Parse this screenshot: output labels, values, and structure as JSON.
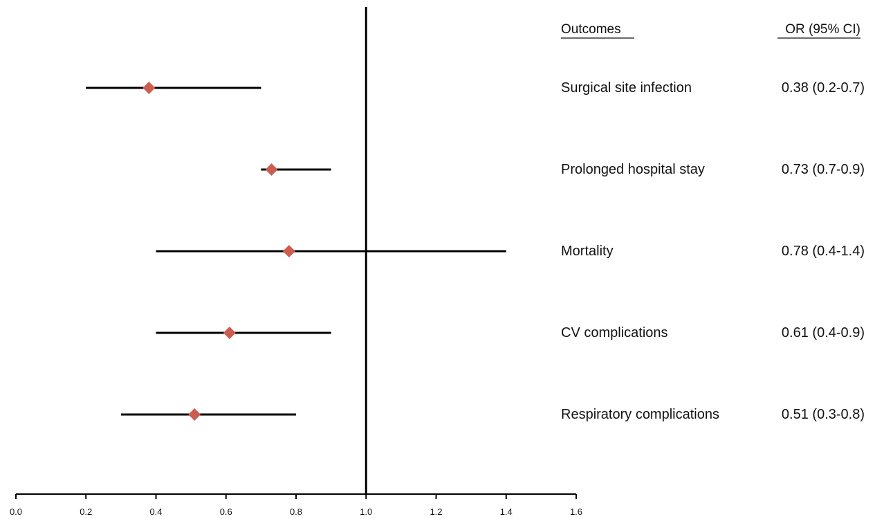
{
  "chart_data": {
    "type": "forest",
    "xlim": [
      0.0,
      1.6
    ],
    "x_ticks": [
      "0.0",
      "0.2",
      "0.4",
      "0.6",
      "0.8",
      "1.0",
      "1.2",
      "1.4",
      "1.6"
    ],
    "reference_line": 1.0,
    "grid": false,
    "marker_shape": "diamond",
    "marker_color": "#cd5c50",
    "line_color": "#000000",
    "columns": {
      "outcome_header": "Outcomes",
      "or_header": "OR (95% CI)"
    },
    "rows": [
      {
        "outcome": "Surgical site infection",
        "or": 0.38,
        "low": 0.2,
        "high": 0.7,
        "label": "0.38 (0.2-0.7)"
      },
      {
        "outcome": "Prolonged hospital stay",
        "or": 0.73,
        "low": 0.7,
        "high": 0.9,
        "label": "0.73 (0.7-0.9)"
      },
      {
        "outcome": "Mortality",
        "or": 0.78,
        "low": 0.4,
        "high": 1.4,
        "label": "0.78 (0.4-1.4)"
      },
      {
        "outcome": "CV complications",
        "or": 0.61,
        "low": 0.4,
        "high": 0.9,
        "label": "0.61 (0.4-0.9)"
      },
      {
        "outcome": "Respiratory complications",
        "or": 0.51,
        "low": 0.3,
        "high": 0.8,
        "label": "0.51 (0.3-0.8)"
      }
    ]
  }
}
